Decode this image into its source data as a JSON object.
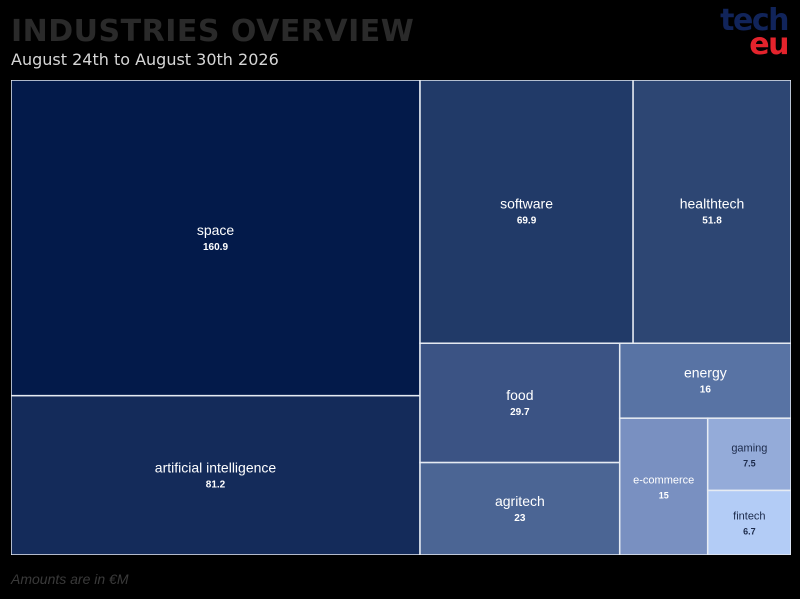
{
  "header": {
    "title": "INDUSTRIES OVERVIEW",
    "subtitle": "August 24th to August 30th 2026",
    "logo_line1": "tech",
    "logo_line2": "eu"
  },
  "footnote": "Amounts are in €M",
  "colors": {
    "background": "#000000",
    "title": "#2a2a2a",
    "logo_dark": "#11245a",
    "logo_red": "#e3232c",
    "border": "#e6ebf3"
  },
  "chart_data": {
    "type": "treemap",
    "title": "INDUSTRIES OVERVIEW",
    "subtitle": "August 24th to August 30th 2026",
    "unit": "€M",
    "items": [
      {
        "name": "space",
        "value": 160.9,
        "color": "#031a4a"
      },
      {
        "name": "artificial intelligence",
        "value": 81.2,
        "color": "#142b5a"
      },
      {
        "name": "software",
        "value": 69.9,
        "color": "#213a68"
      },
      {
        "name": "healthtech",
        "value": 51.8,
        "color": "#2d4673"
      },
      {
        "name": "food",
        "value": 29.7,
        "color": "#3b5384"
      },
      {
        "name": "agritech",
        "value": 23,
        "color": "#4b6594"
      },
      {
        "name": "energy",
        "value": 16,
        "color": "#5873a4"
      },
      {
        "name": "e-commerce",
        "value": 15,
        "color": "#7990c1"
      },
      {
        "name": "gaming",
        "value": 7.5,
        "color": "#94abd9"
      },
      {
        "name": "fintech",
        "value": 6.7,
        "color": "#b3ccf6"
      }
    ]
  }
}
